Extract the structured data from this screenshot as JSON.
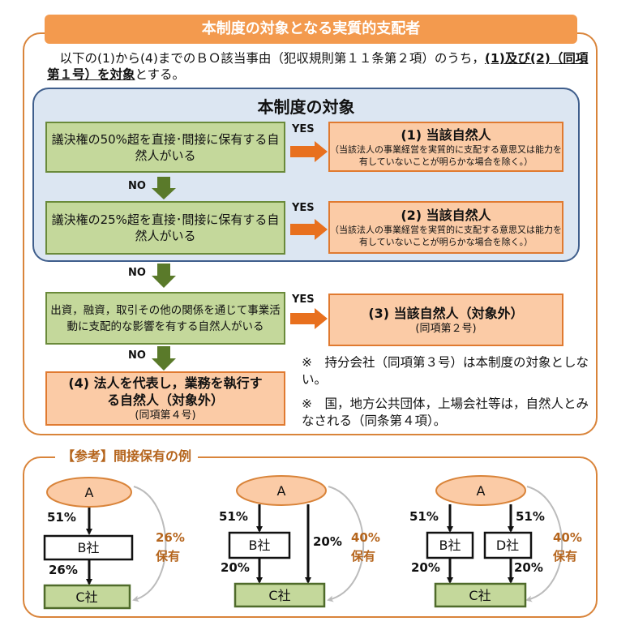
{
  "header": {
    "title": "本制度の対象となる実質的支配者"
  },
  "intro": {
    "text_plain": "以下の(1)から(4)までのＢＯ該当事由（犯収規則第１１条第２項）のうち，",
    "text_bold": "(1)及び(2)（同項第１号）を対象",
    "text_end": "とする。"
  },
  "scope": {
    "title": "本制度の対象"
  },
  "flow": {
    "conditions": [
      "議決権の50%超を直接･間接に保有する自然人がいる",
      "議決権の25%超を直接･間接に保有する自然人がいる",
      "出資，融資，取引その他の関係を通じて事業活動に支配的な影響を有する自然人がいる"
    ],
    "yes_label": "YES",
    "no_label": "NO",
    "results": [
      {
        "title": "(1) 当該自然人",
        "sub": "（当該法人の事業経営を実質的に支配する意思又は能力を有していないことが明らかな場合を除く。）"
      },
      {
        "title": "(2) 当該自然人",
        "sub": "（当該法人の事業経営を実質的に支配する意思又は能力を有していないことが明らかな場合を除く。）"
      },
      {
        "title": "(3) 当該自然人（対象外）",
        "sub": "(同項第２号)"
      },
      {
        "title": "(4) 法人を代表し，業務を執行する自然人（対象外）",
        "sub": "(同項第４号)"
      }
    ]
  },
  "notes": [
    "※　持分会社（同項第３号）は本制度の対象としない。",
    "※　国，地方公共団体，上場会社等は，自然人とみなされる（同条第４項）。"
  ],
  "reference": {
    "title": "【参考】間接保有の例",
    "examples": [
      {
        "top": "A",
        "middle": [
          "B社"
        ],
        "bottom": "C社",
        "top_pct": [
          "51%"
        ],
        "bottom_pct": [
          "26%"
        ],
        "total": "26%",
        "total_label": "保有"
      },
      {
        "top": "A",
        "middle": [
          "B社"
        ],
        "bottom": "C社",
        "top_pct": [
          "51%"
        ],
        "bottom_pct": [
          "20%"
        ],
        "direct_pct": "20%",
        "total": "40%",
        "total_label": "保有"
      },
      {
        "top": "A",
        "middle": [
          "B社",
          "D社"
        ],
        "bottom": "C社",
        "top_pct": [
          "51%",
          "51%"
        ],
        "bottom_pct": [
          "20%",
          "20%"
        ],
        "total": "40%",
        "total_label": "保有"
      }
    ]
  },
  "colors": {
    "header_orange": "#F39A4E",
    "frame": "#D9843A",
    "blue_fill": "#DCE6F2",
    "blue_border": "#3F5E8C",
    "green_fill": "#C4D89B",
    "green_border": "#6A8A3A",
    "result_fill": "#FBCBA6",
    "result_border": "#E07A30",
    "arrow_orange": "#E8701E",
    "arrow_green": "#5A7A2A",
    "ref_title": "#B5651D"
  }
}
